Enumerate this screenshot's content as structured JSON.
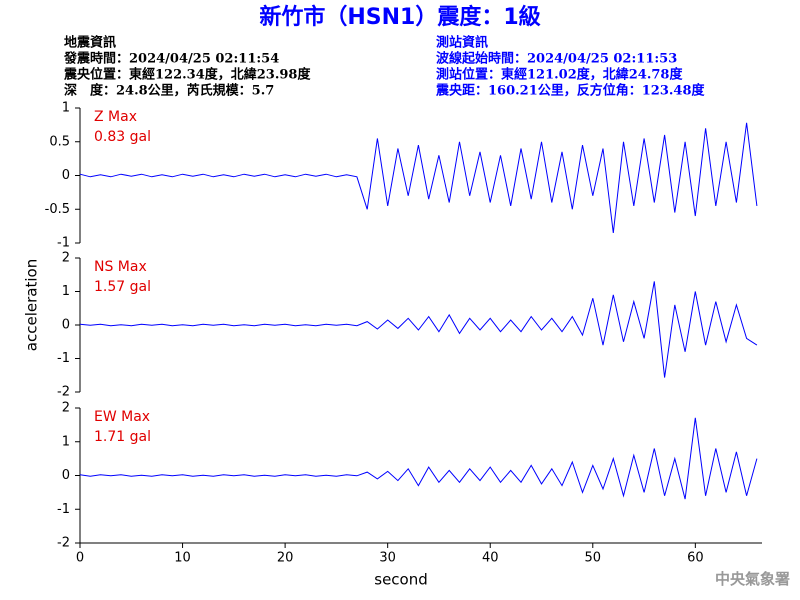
{
  "header": {
    "title": "新竹市（HSN1）震度：1級",
    "left_block": [
      "地震資訊",
      "發震時間：2024/04/25 02:11:54",
      "震央位置：東經122.34度，北緯23.98度",
      "深　度：24.8公里，芮氏規模：5.7"
    ],
    "right_block": [
      "測站資訊",
      "波線起始時間：2024/04/25 02:11:53",
      "測站位置：東經121.02度，北緯24.78度",
      "震央距：160.21公里，反方位角：123.48度"
    ]
  },
  "footer": "中央氣象署",
  "chart_data": [
    {
      "type": "line",
      "label": "Z Max",
      "max_label": "0.83 gal",
      "xlim": [
        0,
        66.5
      ],
      "ylim": [
        -1,
        1
      ],
      "yticks": [
        -1,
        -0.5,
        0,
        0.5,
        1
      ],
      "x": [
        0,
        1,
        2,
        3,
        4,
        5,
        6,
        7,
        8,
        9,
        10,
        11,
        12,
        13,
        14,
        15,
        16,
        17,
        18,
        19,
        20,
        21,
        22,
        23,
        24,
        25,
        26,
        27,
        28,
        29,
        30,
        31,
        32,
        33,
        34,
        35,
        36,
        37,
        38,
        39,
        40,
        41,
        42,
        43,
        44,
        45,
        46,
        47,
        48,
        49,
        50,
        51,
        52,
        53,
        54,
        55,
        56,
        57,
        58,
        59,
        60,
        61,
        62,
        63,
        64,
        65,
        66
      ],
      "series": [
        {
          "color": "#0000ff",
          "values": [
            0.02,
            -0.02,
            0.01,
            -0.02,
            0.02,
            -0.01,
            0.02,
            -0.02,
            0.01,
            -0.02,
            0.02,
            -0.01,
            0.02,
            -0.02,
            0.01,
            -0.02,
            0.02,
            -0.01,
            0.02,
            -0.02,
            0.01,
            -0.02,
            0.02,
            -0.01,
            0.02,
            -0.02,
            0.01,
            -0.02,
            -0.5,
            0.55,
            -0.45,
            0.4,
            -0.3,
            0.45,
            -0.35,
            0.3,
            -0.4,
            0.5,
            -0.3,
            0.35,
            -0.4,
            0.3,
            -0.45,
            0.4,
            -0.35,
            0.5,
            -0.4,
            0.35,
            -0.5,
            0.45,
            -0.3,
            0.4,
            -0.85,
            0.5,
            -0.45,
            0.55,
            -0.4,
            0.6,
            -0.55,
            0.5,
            -0.6,
            0.7,
            -0.45,
            0.5,
            -0.4,
            0.78,
            -0.45
          ]
        }
      ]
    },
    {
      "type": "line",
      "label": "NS Max",
      "max_label": "1.57 gal",
      "ylabel": "acceleration",
      "xlim": [
        0,
        66.5
      ],
      "ylim": [
        -2,
        2
      ],
      "yticks": [
        -2,
        -1,
        0,
        1,
        2
      ],
      "x": [
        0,
        1,
        2,
        3,
        4,
        5,
        6,
        7,
        8,
        9,
        10,
        11,
        12,
        13,
        14,
        15,
        16,
        17,
        18,
        19,
        20,
        21,
        22,
        23,
        24,
        25,
        26,
        27,
        28,
        29,
        30,
        31,
        32,
        33,
        34,
        35,
        36,
        37,
        38,
        39,
        40,
        41,
        42,
        43,
        44,
        45,
        46,
        47,
        48,
        49,
        50,
        51,
        52,
        53,
        54,
        55,
        56,
        57,
        58,
        59,
        60,
        61,
        62,
        63,
        64,
        65,
        66
      ],
      "series": [
        {
          "color": "#0000ff",
          "values": [
            0.02,
            -0.01,
            0.02,
            -0.02,
            0.01,
            -0.02,
            0.02,
            -0.01,
            0.02,
            -0.02,
            0.01,
            -0.02,
            0.02,
            -0.01,
            0.02,
            -0.02,
            0.01,
            -0.02,
            0.02,
            -0.01,
            0.02,
            -0.02,
            0.01,
            -0.02,
            0.02,
            -0.01,
            0.02,
            -0.02,
            0.1,
            -0.12,
            0.15,
            -0.1,
            0.2,
            -0.15,
            0.25,
            -0.2,
            0.3,
            -0.25,
            0.2,
            -0.15,
            0.2,
            -0.2,
            0.15,
            -0.2,
            0.25,
            -0.15,
            0.2,
            -0.2,
            0.25,
            -0.3,
            0.8,
            -0.6,
            0.9,
            -0.5,
            0.7,
            -0.4,
            1.3,
            -1.57,
            0.6,
            -0.8,
            1.0,
            -0.6,
            0.7,
            -0.5,
            0.6,
            -0.4,
            -0.6
          ]
        }
      ]
    },
    {
      "type": "line",
      "label": "EW Max",
      "max_label": "1.71 gal",
      "xlabel": "second",
      "xlim": [
        0,
        66.5
      ],
      "ylim": [
        -2,
        2
      ],
      "yticks": [
        -2,
        -1,
        0,
        1,
        2
      ],
      "xticks": [
        0,
        10,
        20,
        30,
        40,
        50,
        60
      ],
      "x": [
        0,
        1,
        2,
        3,
        4,
        5,
        6,
        7,
        8,
        9,
        10,
        11,
        12,
        13,
        14,
        15,
        16,
        17,
        18,
        19,
        20,
        21,
        22,
        23,
        24,
        25,
        26,
        27,
        28,
        29,
        30,
        31,
        32,
        33,
        34,
        35,
        36,
        37,
        38,
        39,
        40,
        41,
        42,
        43,
        44,
        45,
        46,
        47,
        48,
        49,
        50,
        51,
        52,
        53,
        54,
        55,
        56,
        57,
        58,
        59,
        60,
        61,
        62,
        63,
        64,
        65,
        66
      ],
      "series": [
        {
          "color": "#0000ff",
          "values": [
            0.02,
            -0.02,
            0.02,
            -0.01,
            0.02,
            -0.02,
            0.01,
            -0.02,
            0.02,
            -0.01,
            0.02,
            -0.02,
            0.01,
            -0.02,
            0.02,
            -0.01,
            0.02,
            -0.02,
            0.01,
            -0.02,
            0.02,
            -0.01,
            0.02,
            -0.02,
            0.01,
            -0.02,
            0.02,
            -0.01,
            0.1,
            -0.1,
            0.12,
            -0.15,
            0.2,
            -0.3,
            0.25,
            -0.2,
            0.15,
            -0.2,
            0.2,
            -0.15,
            0.25,
            -0.2,
            0.15,
            -0.2,
            0.3,
            -0.25,
            0.2,
            -0.3,
            0.4,
            -0.5,
            0.3,
            -0.4,
            0.5,
            -0.6,
            0.6,
            -0.5,
            0.8,
            -0.6,
            0.5,
            -0.7,
            1.71,
            -0.6,
            0.8,
            -0.5,
            0.7,
            -0.6,
            0.5
          ]
        }
      ]
    }
  ]
}
